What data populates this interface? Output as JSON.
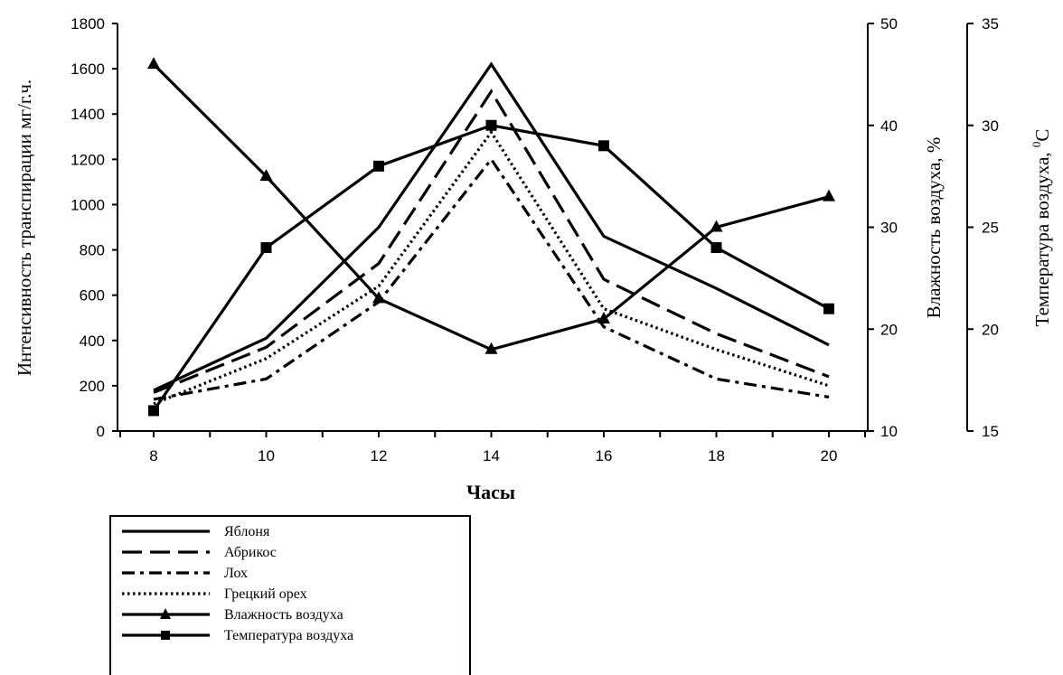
{
  "chart_data": {
    "type": "line",
    "xlabel": "Часы",
    "x": [
      8,
      10,
      12,
      14,
      16,
      18,
      20
    ],
    "x_ticks": [
      "8",
      "10",
      "12",
      "14",
      "16",
      "18",
      "20"
    ],
    "axes": {
      "left": {
        "label": "Интенсивность транспирации мг/г.ч.",
        "range": [
          0,
          1800
        ],
        "ticks": [
          "0",
          "200",
          "400",
          "600",
          "800",
          "1000",
          "1200",
          "1400",
          "1600",
          "1800"
        ]
      },
      "right1": {
        "label": "Влажность воздуха, %",
        "range": [
          10,
          50
        ],
        "ticks": [
          "10",
          "20",
          "30",
          "40",
          "50"
        ]
      },
      "right2": {
        "label": "Температура воздуха, ",
        "label_sup": "0",
        "label_tail": "С",
        "range": [
          15,
          35
        ],
        "ticks": [
          "15",
          "20",
          "25",
          "30",
          "35"
        ]
      }
    },
    "series": [
      {
        "name": "Яблоня",
        "axis": "left",
        "style": "solid",
        "marker": "none",
        "values": [
          180,
          410,
          900,
          1620,
          860,
          630,
          380
        ]
      },
      {
        "name": "Абрикос",
        "axis": "left",
        "style": "dash",
        "marker": "none",
        "values": [
          170,
          370,
          740,
          1500,
          670,
          430,
          240
        ]
      },
      {
        "name": "Лох",
        "axis": "left",
        "style": "dashdot",
        "marker": "none",
        "values": [
          140,
          230,
          570,
          1200,
          460,
          230,
          150
        ]
      },
      {
        "name": "Грецкий орех",
        "axis": "left",
        "style": "dot",
        "marker": "none",
        "values": [
          120,
          320,
          640,
          1320,
          540,
          360,
          200
        ]
      },
      {
        "name": "Влажность воздуха",
        "axis": "right1",
        "style": "solid",
        "marker": "triangle",
        "values": [
          46,
          35,
          23,
          18,
          21,
          30,
          33
        ]
      },
      {
        "name": "Температура воздуха",
        "axis": "right2",
        "style": "solid",
        "marker": "square",
        "values": [
          16,
          24,
          28,
          30,
          29,
          24,
          21
        ]
      }
    ],
    "legend_placement": "bottom-left",
    "grid": false
  }
}
